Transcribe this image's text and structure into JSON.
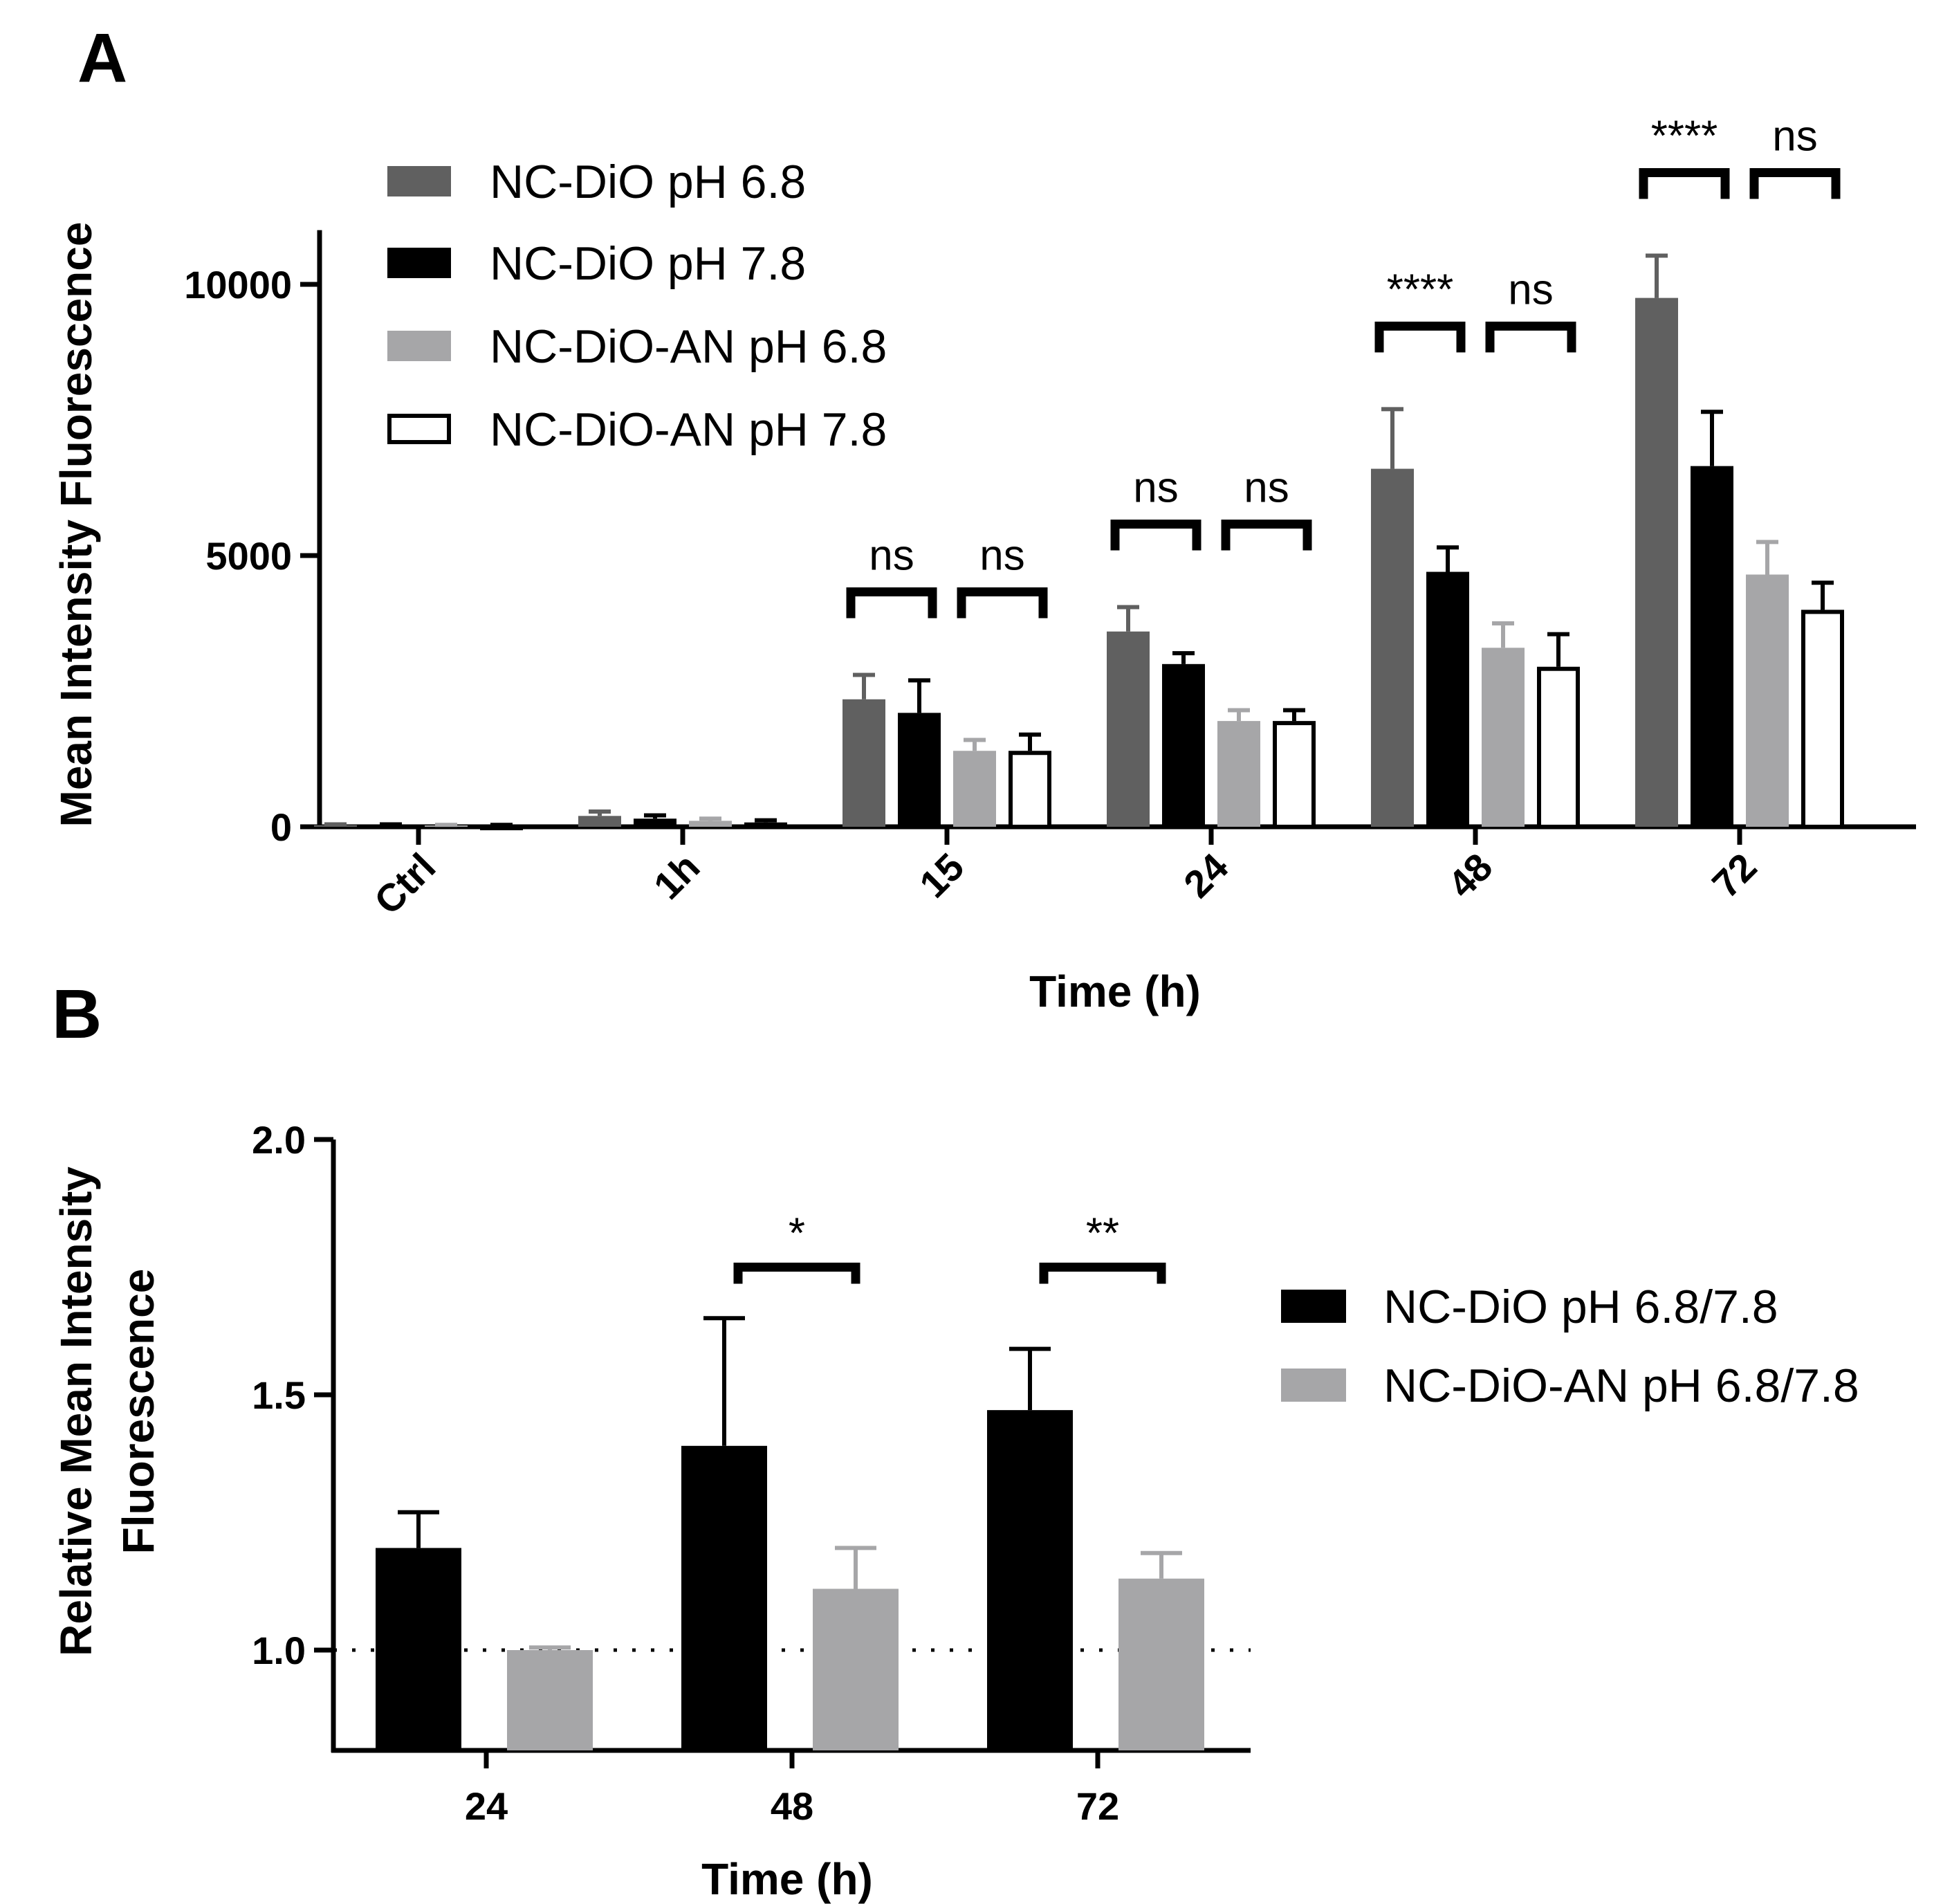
{
  "chart_data": [
    {
      "panel_label": "A",
      "type": "bar",
      "xlabel": "Time (h)",
      "ylabel": "Mean Intensity Fluorescence",
      "ylim": [
        0,
        11000
      ],
      "yticks": [
        0,
        5000,
        10000
      ],
      "ytick_labels": [
        "0",
        "5000",
        "10000"
      ],
      "categories": [
        "Ctrl",
        "1h",
        "15",
        "24",
        "48",
        "72"
      ],
      "series": [
        {
          "name": "NC-DiO pH 6.8",
          "color": "#606060",
          "fill": "solid",
          "values": [
            30,
            200,
            2350,
            3600,
            6600,
            9750
          ],
          "errors": [
            15,
            80,
            450,
            450,
            1100,
            780
          ]
        },
        {
          "name": "NC-DiO pH 7.8",
          "color": "#000000",
          "fill": "solid",
          "values": [
            30,
            150,
            2100,
            3000,
            4700,
            6650
          ],
          "errors": [
            15,
            60,
            600,
            200,
            450,
            1000
          ]
        },
        {
          "name": "NC-DiO-AN pH 6.8",
          "color": "#a6a6a8",
          "fill": "solid",
          "values": [
            25,
            110,
            1400,
            1950,
            3300,
            4650
          ],
          "errors": [
            10,
            40,
            200,
            200,
            450,
            600
          ]
        },
        {
          "name": "NC-DiO-AN pH 7.8",
          "color": "#000000",
          "fill": "open",
          "values": [
            25,
            80,
            1400,
            1950,
            2950,
            4000
          ],
          "errors": [
            10,
            40,
            300,
            200,
            600,
            500
          ]
        }
      ],
      "significance": [
        {
          "category": 2,
          "pair": [
            0,
            1
          ],
          "label": "ns"
        },
        {
          "category": 2,
          "pair": [
            2,
            3
          ],
          "label": "ns"
        },
        {
          "category": 3,
          "pair": [
            0,
            1
          ],
          "label": "ns"
        },
        {
          "category": 3,
          "pair": [
            2,
            3
          ],
          "label": "ns"
        },
        {
          "category": 4,
          "pair": [
            0,
            1
          ],
          "label": "****"
        },
        {
          "category": 4,
          "pair": [
            2,
            3
          ],
          "label": "ns"
        },
        {
          "category": 5,
          "pair": [
            0,
            1
          ],
          "label": "****"
        },
        {
          "category": 5,
          "pair": [
            2,
            3
          ],
          "label": "ns"
        }
      ],
      "legend_position": "top-left"
    },
    {
      "panel_label": "B",
      "type": "bar",
      "xlabel": "Time (h)",
      "ylabel_lines": [
        "Relative Mean Intensity",
        "Fluorescence"
      ],
      "ylim": [
        0.8,
        2.0
      ],
      "yticks": [
        1.0,
        1.5,
        2.0
      ],
      "ytick_labels": [
        "1.0",
        "1.5",
        "2.0"
      ],
      "reference_line": 1.0,
      "categories": [
        "24",
        "48",
        "72"
      ],
      "series": [
        {
          "name": "NC-DiO pH 6.8/7.8",
          "color": "#000000",
          "fill": "solid",
          "values": [
            1.2,
            1.4,
            1.47
          ],
          "errors": [
            0.07,
            0.25,
            0.12
          ]
        },
        {
          "name": "NC-DiO-AN pH 6.8/7.8",
          "color": "#a6a6a8",
          "fill": "solid",
          "values": [
            1.0,
            1.12,
            1.14
          ],
          "errors": [
            0.005,
            0.08,
            0.05
          ]
        }
      ],
      "significance": [
        {
          "category": 1,
          "pair": [
            0,
            1
          ],
          "label": "*"
        },
        {
          "category": 2,
          "pair": [
            0,
            1
          ],
          "label": "**"
        }
      ],
      "legend_position": "right"
    }
  ]
}
